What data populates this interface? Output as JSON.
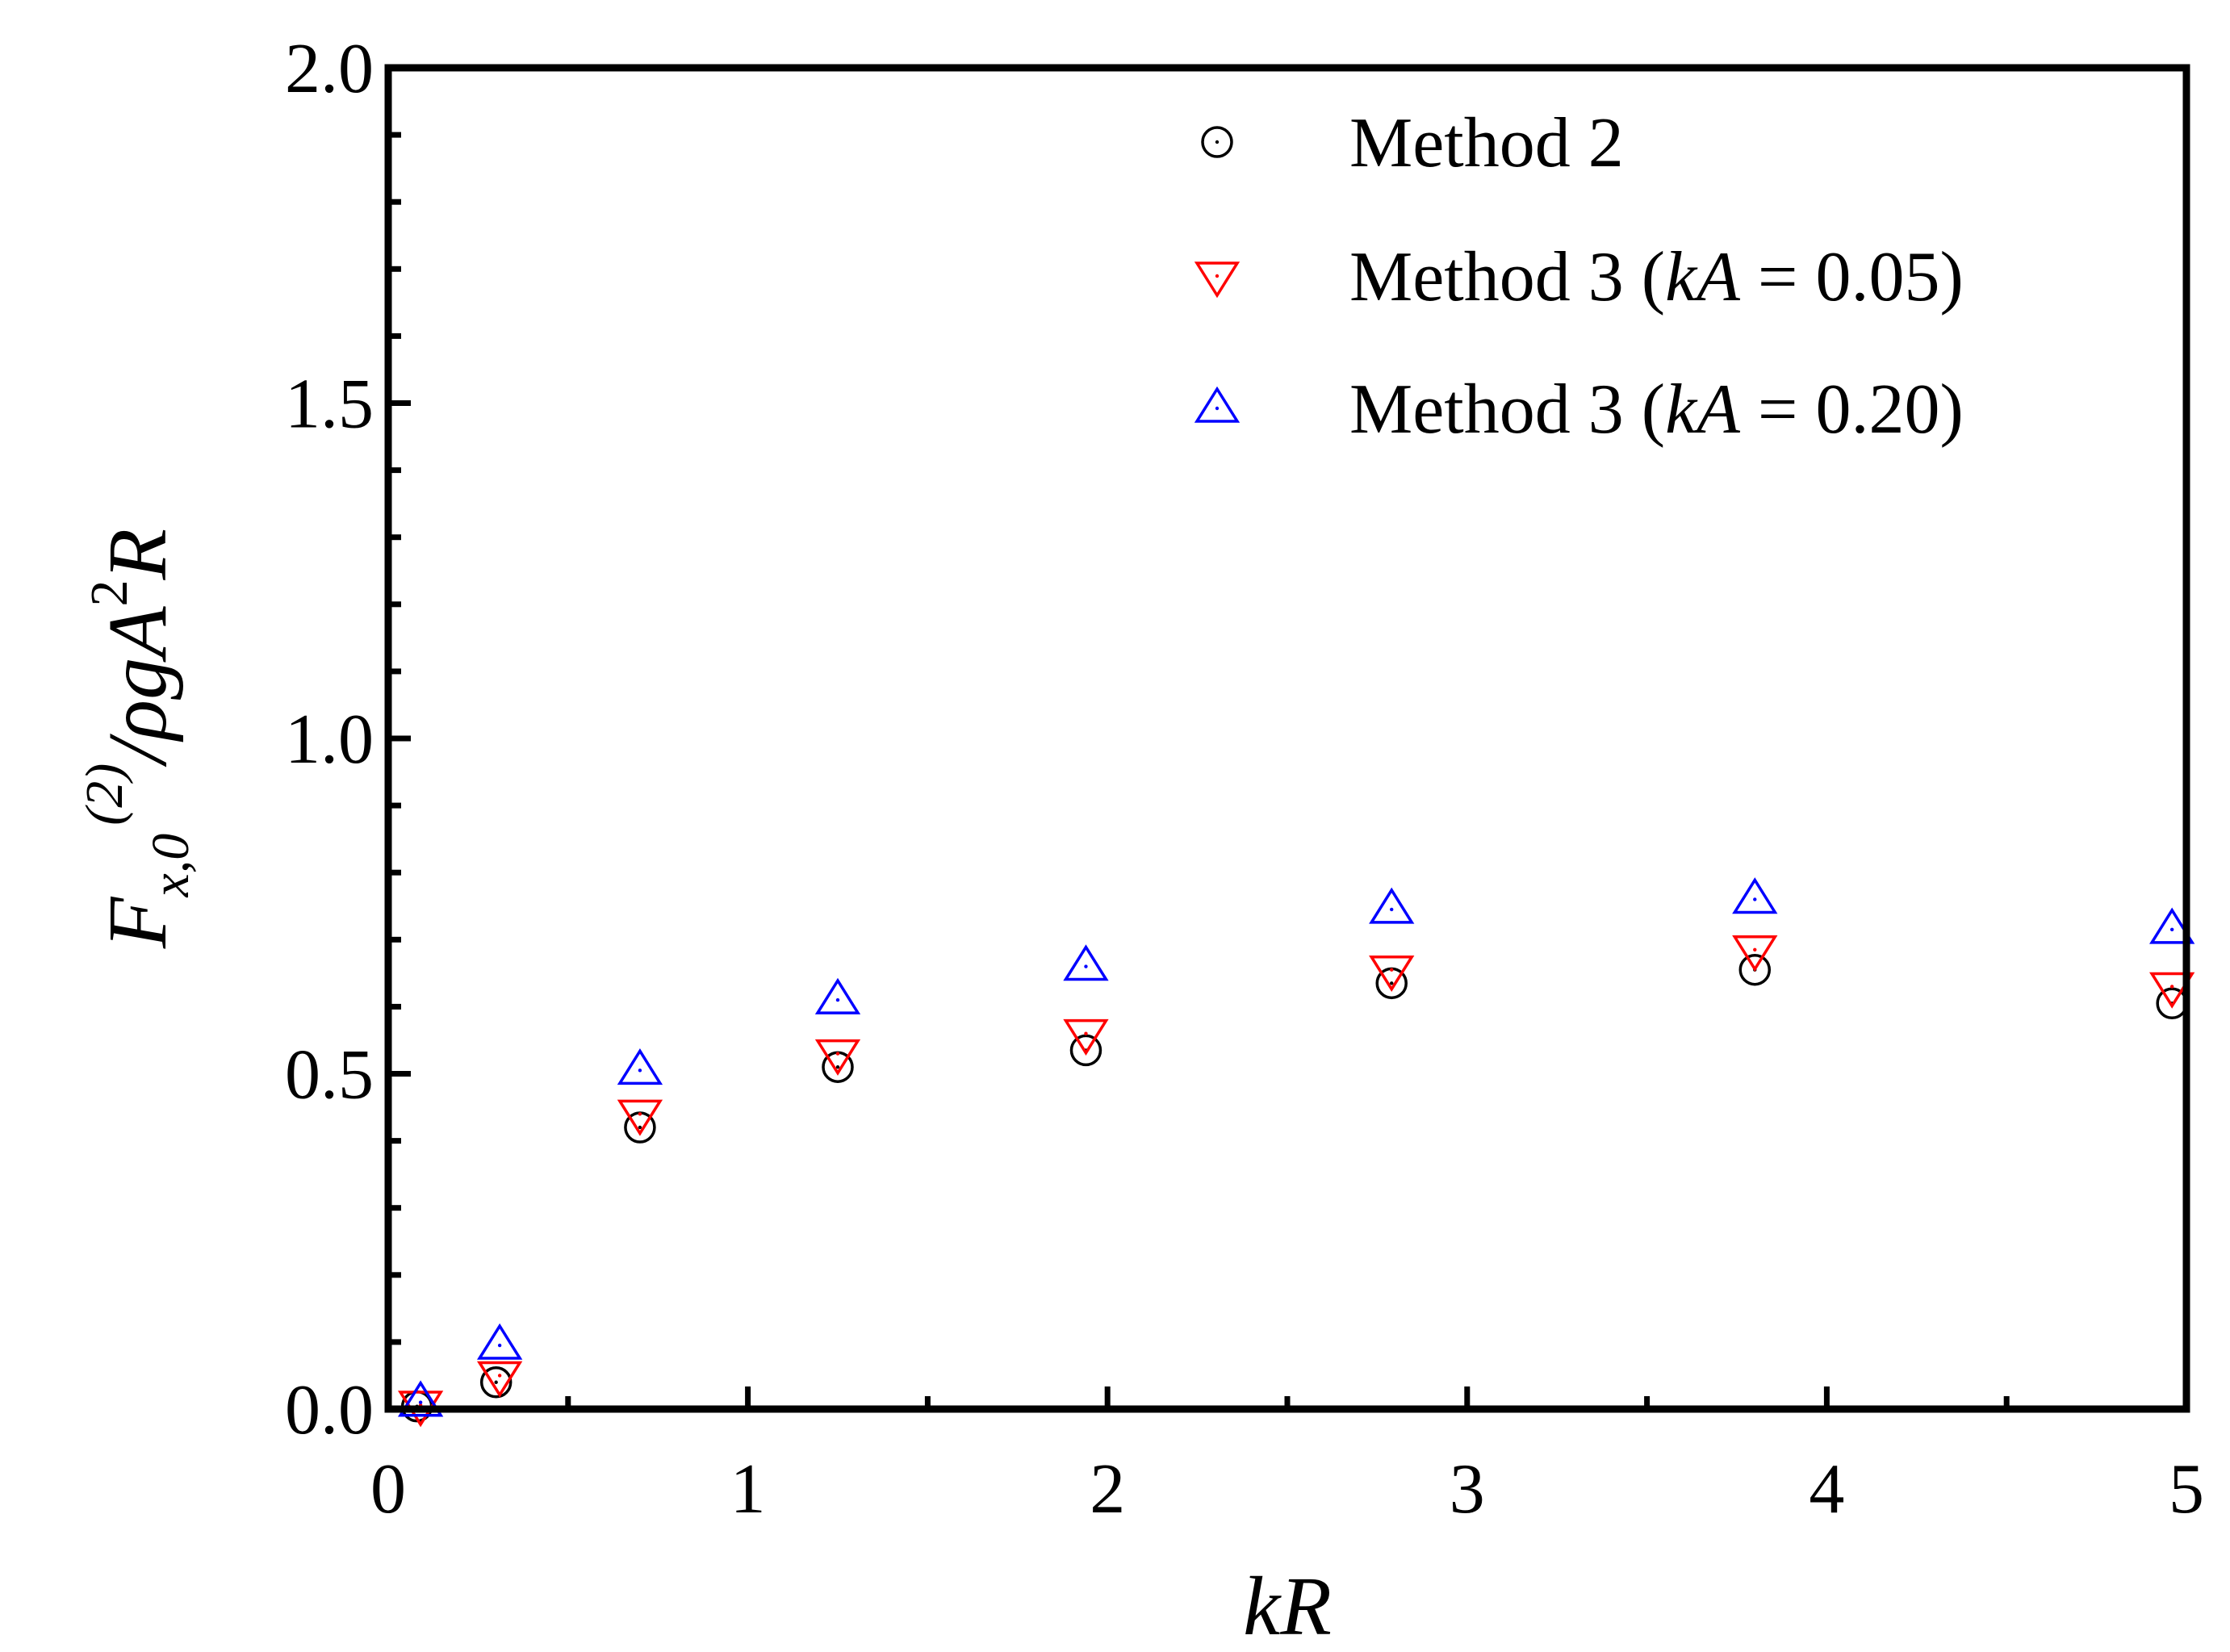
{
  "chart_data": {
    "type": "scatter",
    "title": "",
    "xlabel": "kR",
    "ylabel": {
      "F": "F",
      "sub": "x,0",
      "sup": "(2)",
      "rest": "/ρgA",
      "sq": "2",
      "R": "R"
    },
    "xlim": [
      0,
      5
    ],
    "ylim": [
      0,
      2
    ],
    "xticks": [
      0,
      1,
      2,
      3,
      4,
      5
    ],
    "xtick_labels": [
      "0",
      "1",
      "2",
      "3",
      "4",
      "5"
    ],
    "yticks": [
      0,
      0.5,
      1,
      1.5,
      2
    ],
    "ytick_labels": [
      "0.0",
      "0.5",
      "1.0",
      "1.5",
      "2.0"
    ],
    "grid": false,
    "legend_position": "top-right",
    "series": [
      {
        "name": "Method 2",
        "legend": {
          "pre": "Method 2",
          "italic": "",
          "post": ""
        },
        "marker": "circle",
        "color": "#000000",
        "x": [
          0.08,
          0.3,
          0.7,
          1.25,
          1.94,
          2.79,
          3.8,
          4.96
        ],
        "y": [
          0.004,
          0.04,
          0.42,
          0.51,
          0.535,
          0.635,
          0.655,
          0.605
        ]
      },
      {
        "name": "Method 3 (kA = 0.05)",
        "legend": {
          "pre": "Method 3 (",
          "italic": "kA",
          "post": " = 0.05)"
        },
        "marker": "triangle-down",
        "color": "#ff0000",
        "x": [
          0.09,
          0.31,
          0.7,
          1.25,
          1.94,
          2.79,
          3.8,
          4.96
        ],
        "y": [
          0.006,
          0.05,
          0.44,
          0.53,
          0.56,
          0.655,
          0.685,
          0.63
        ]
      },
      {
        "name": "Method 3 (kA = 0.20)",
        "legend": {
          "pre": "Method 3 (",
          "italic": "kA",
          "post": " = 0.20)"
        },
        "marker": "triangle-up",
        "color": "#0000ff",
        "x": [
          0.09,
          0.31,
          0.7,
          1.25,
          1.94,
          2.79,
          3.8,
          4.96
        ],
        "y": [
          0.01,
          0.095,
          0.505,
          0.61,
          0.66,
          0.745,
          0.76,
          0.715
        ]
      }
    ]
  }
}
